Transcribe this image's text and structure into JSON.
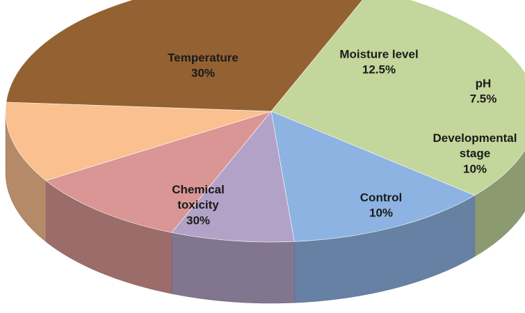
{
  "chart_data": {
    "type": "pie3d",
    "categories": [
      "Temperature",
      "Moisture level",
      "pH",
      "Developmental stage",
      "Control",
      "Chemical toxicity"
    ],
    "values": [
      30,
      12.5,
      7.5,
      10,
      10,
      30
    ],
    "value_labels": [
      "30%",
      "12.5%",
      "7.5%",
      "10%",
      "10%",
      "30%"
    ],
    "colors": [
      "#c3d69b",
      "#8db3e2",
      "#b3a2c7",
      "#d99694",
      "#fac090",
      "#946232"
    ]
  }
}
